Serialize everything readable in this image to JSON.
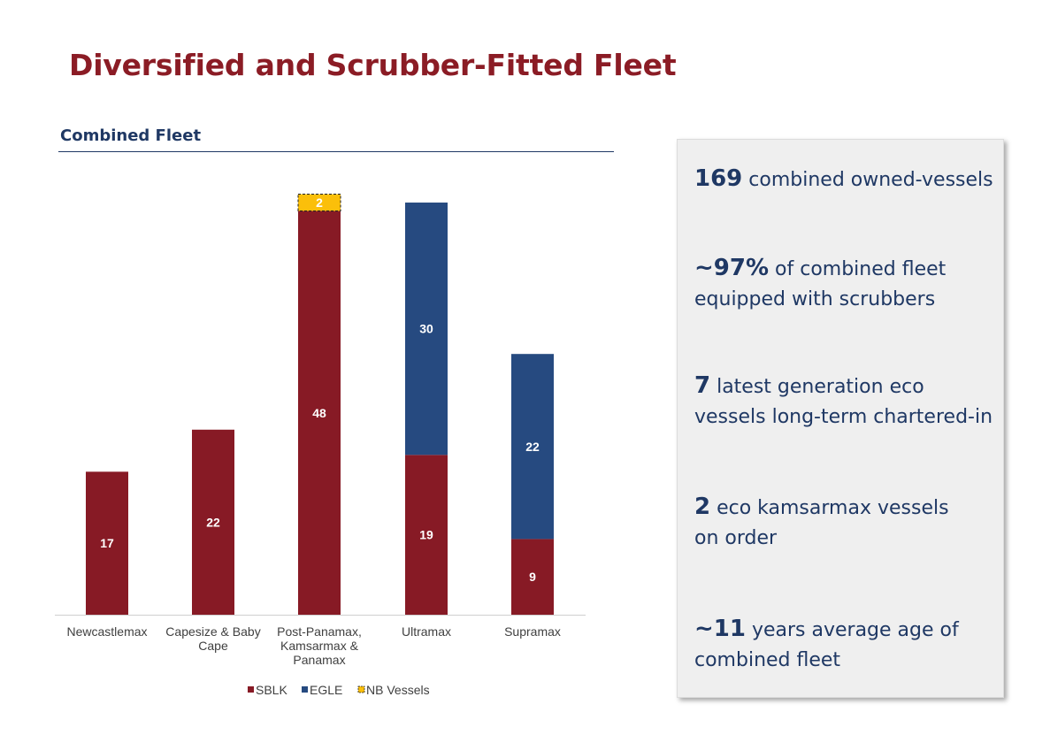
{
  "page": {
    "title": "Diversified and Scrubber-Fitted Fleet"
  },
  "section": {
    "title": "Combined Fleet"
  },
  "colors": {
    "sblk": "#871a25",
    "egle": "#264a80",
    "nb": "#fbbf0a",
    "title": "#8b1c25",
    "navy": "#1f3864"
  },
  "chart_data": {
    "type": "bar",
    "stacked": true,
    "categories": [
      "Newcastlemax",
      "Capesize & Baby Cape",
      "Post-Panamax, Kamsarmax & Panamax",
      "Ultramax",
      "Supramax"
    ],
    "category_lines": [
      [
        "Newcastlemax"
      ],
      [
        "Capesize & Baby",
        "Cape"
      ],
      [
        "Post-Panamax,",
        "Kamsarmax &",
        "Panamax"
      ],
      [
        "Ultramax"
      ],
      [
        "Supramax"
      ]
    ],
    "series": [
      {
        "name": "SBLK",
        "values": [
          17,
          22,
          48,
          19,
          9
        ],
        "labels": [
          "17",
          "22",
          "48",
          "19",
          "9"
        ]
      },
      {
        "name": "EGLE",
        "values": [
          0,
          0,
          0,
          30,
          22
        ],
        "labels": [
          "",
          "",
          "",
          "30",
          "22"
        ]
      },
      {
        "name": "NB Vessels",
        "values": [
          0,
          0,
          2,
          0,
          0
        ],
        "labels": [
          "",
          "",
          "2",
          "",
          ""
        ]
      }
    ],
    "ylim": [
      0,
      51
    ],
    "grid": false,
    "legend_position": "bottom"
  },
  "stats": [
    {
      "number": "169",
      "text": " combined owned-vessels"
    },
    {
      "number": "~97%",
      "text": " of combined fleet equipped with scrubbers"
    },
    {
      "number": "7",
      "text": " latest generation eco vessels long-term chartered-in"
    },
    {
      "number": "2",
      "text": " eco kamsarmax vessels on order"
    },
    {
      "number": "~11",
      "text": " years average age of combined fleet"
    }
  ]
}
